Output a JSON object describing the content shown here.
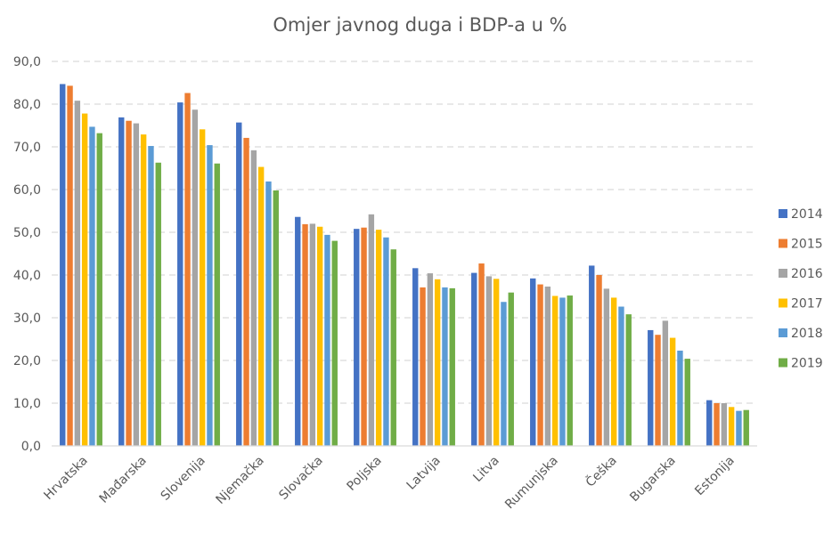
{
  "chart_data": {
    "type": "bar",
    "title": "Omjer javnog duga i BDP-a u %",
    "xlabel": "",
    "ylabel": "",
    "ylim": [
      0,
      90
    ],
    "yticks": [
      "0,0",
      "10,0",
      "20,0",
      "30,0",
      "40,0",
      "50,0",
      "60,0",
      "70,0",
      "80,0",
      "90,0"
    ],
    "grid": true,
    "legend_position": "right",
    "categories": [
      "Hrvatska",
      "Mađarska",
      "Slovenija",
      "Njemačka",
      "Slovačka",
      "Poljska",
      "Latvija",
      "Litva",
      "Rumunjska",
      "Češka",
      "Bugarska",
      "Estonija"
    ],
    "series": [
      {
        "name": "2014",
        "color": "#4472C4",
        "values": [
          84.7,
          76.9,
          80.4,
          75.7,
          53.6,
          50.8,
          41.6,
          40.5,
          39.2,
          42.2,
          27.1,
          10.7
        ]
      },
      {
        "name": "2015",
        "color": "#ED7D31",
        "values": [
          84.3,
          76.1,
          82.6,
          72.1,
          51.9,
          51.1,
          37.1,
          42.7,
          37.8,
          40.0,
          26.0,
          10.0
        ]
      },
      {
        "name": "2016",
        "color": "#A5A5A5",
        "values": [
          80.8,
          75.5,
          78.7,
          69.2,
          52.0,
          54.2,
          40.4,
          39.7,
          37.3,
          36.8,
          29.3,
          10.0
        ]
      },
      {
        "name": "2017",
        "color": "#FFC000",
        "values": [
          77.8,
          72.9,
          74.1,
          65.3,
          51.3,
          50.6,
          39.0,
          39.1,
          35.1,
          34.7,
          25.3,
          9.1
        ]
      },
      {
        "name": "2018",
        "color": "#5B9BD5",
        "values": [
          74.7,
          70.2,
          70.4,
          61.9,
          49.4,
          48.8,
          37.1,
          33.7,
          34.7,
          32.6,
          22.3,
          8.2
        ]
      },
      {
        "name": "2019",
        "color": "#70AD47",
        "values": [
          73.2,
          66.3,
          66.1,
          59.8,
          48.0,
          46.0,
          36.9,
          35.9,
          35.2,
          30.8,
          20.4,
          8.4
        ]
      }
    ]
  }
}
